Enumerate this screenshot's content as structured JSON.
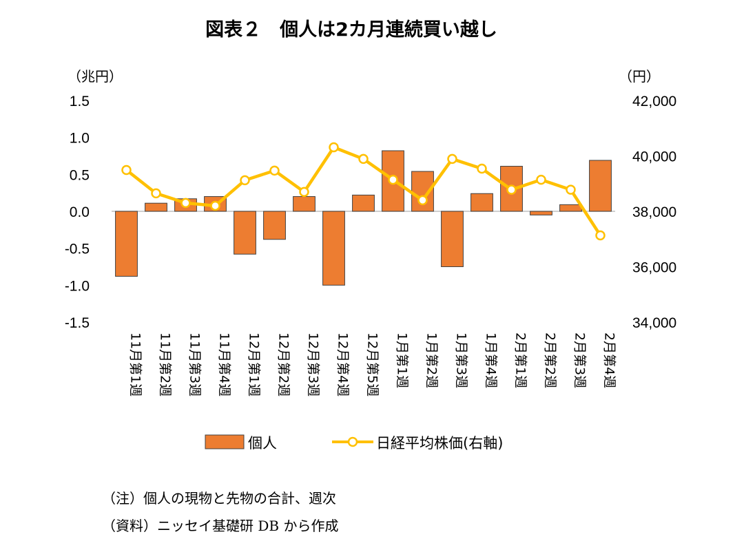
{
  "chart_data": {
    "type": "bar+line",
    "title": "図表２　個人は2カ月連続買い越し",
    "left_axis": {
      "unit_label": "（兆円）",
      "ylim": [
        -1.5,
        1.5
      ],
      "ticks": [
        "1.5",
        "1.0",
        "0.5",
        "0.0",
        "-0.5",
        "-1.0",
        "-1.5"
      ],
      "tick_values": [
        1.5,
        1.0,
        0.5,
        0.0,
        -0.5,
        -1.0,
        -1.5
      ]
    },
    "right_axis": {
      "unit_label": "（円）",
      "ylim": [
        34000,
        42000
      ],
      "ticks": [
        "42,000",
        "40,000",
        "38,000",
        "36,000",
        "34,000"
      ],
      "tick_values": [
        42000,
        40000,
        38000,
        36000,
        34000
      ]
    },
    "categories": [
      "11月第1週",
      "11月第2週",
      "11月第3週",
      "11月第4週",
      "12月第1週",
      "12月第2週",
      "12月第3週",
      "12月第4週",
      "12月第5週",
      "1月第1週",
      "1月第2週",
      "1月第3週",
      "1月第4週",
      "2月第1週",
      "2月第2週",
      "2月第3週",
      "2月第4週"
    ],
    "series": [
      {
        "name": "個人",
        "type": "bar",
        "axis": "left",
        "color": "#ED7D31",
        "values": [
          -0.88,
          0.11,
          0.17,
          0.2,
          -0.58,
          -0.38,
          0.2,
          -1.0,
          0.22,
          0.82,
          0.54,
          -0.75,
          0.24,
          0.61,
          -0.05,
          0.09,
          0.69
        ]
      },
      {
        "name": "日経平均株価(右軸)",
        "type": "line",
        "axis": "right",
        "color": "#FFC000",
        "values": [
          39490,
          38650,
          38300,
          38200,
          39120,
          39470,
          38700,
          40310,
          39890,
          39140,
          38400,
          39890,
          39540,
          38780,
          39140,
          38780,
          37130
        ]
      }
    ],
    "grid": false,
    "legend_position": "bottom"
  },
  "notes": {
    "note": "（注）個人の現物と先物の合計、週次",
    "source": "（資料）ニッセイ基礎研 DB から作成"
  }
}
